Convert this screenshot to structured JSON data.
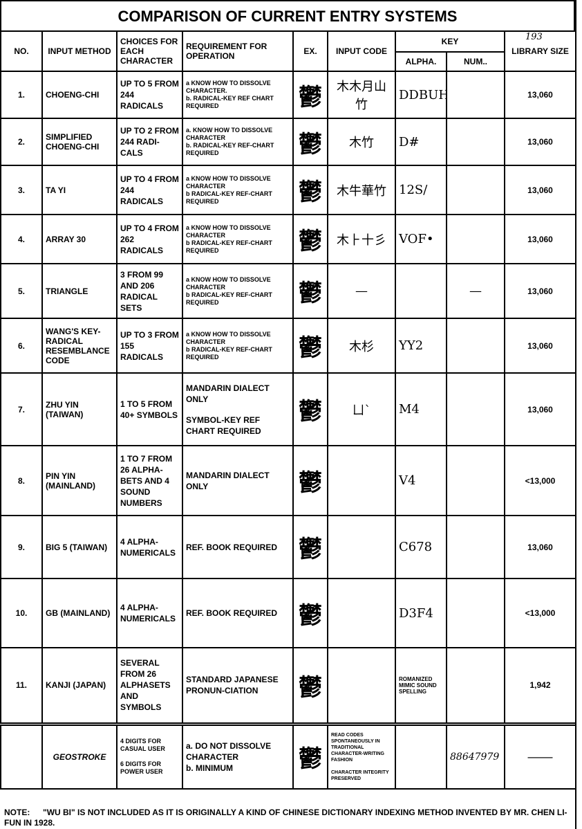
{
  "title": "COMPARISON OF CURRENT ENTRY SYSTEMS",
  "headers": {
    "no": "NO.",
    "method": "INPUT METHOD",
    "choices": "CHOICES FOR EACH CHARACTER",
    "requirement": "REQUIREMENT FOR OPERATION",
    "ex": "EX.",
    "input_code": "INPUT CODE",
    "key": "KEY",
    "alpha": "ALPHA.",
    "num": "NUM..",
    "library": "LIBRARY SIZE",
    "library_note": "193"
  },
  "example_char": "鬱",
  "rows": [
    {
      "no": "1.",
      "method": "CHOENG-CHI",
      "choices": "UP TO 5 FROM 244 RADICALS",
      "req": [
        "a  KNOW HOW TO DISSOLVE CHARACTER.",
        "b. RADICAL-KEY REF CHART REQUIRED"
      ],
      "code": "木木月山竹",
      "alpha": "DDBUH",
      "num": "",
      "lib": "13,060"
    },
    {
      "no": "2.",
      "method": "SIMPLIFIED CHOENG-CHI",
      "choices": "UP TO 2 FROM 244 RADI-CALS",
      "req": [
        "a. KNOW HOW TO DISSOLVE CHARACTER",
        "b. RADICAL-KEY REF-CHART REQUIRED"
      ],
      "code": "木竹",
      "alpha": "D#",
      "num": "",
      "lib": "13,060"
    },
    {
      "no": "3.",
      "method": "TA YI",
      "choices": "UP TO 4 FROM 244 RADICALS",
      "req": [
        "a KNOW HOW TO DISSOLVE CHARACTER",
        "b RADICAL-KEY REF-CHART REQUIRED"
      ],
      "code": "木牛華竹",
      "alpha": "12S/",
      "num": "",
      "lib": "13,060"
    },
    {
      "no": "4.",
      "method": "ARRAY 30",
      "choices": "UP TO 4 FROM 262 RADICALS",
      "req": [
        "a KNOW HOW TO DISSOLVE CHARACTER",
        "b RADICAL-KEY REF-CHART REQUIRED"
      ],
      "code": "木⺊十彡",
      "alpha": "VOF•",
      "num": "",
      "lib": "13,060"
    },
    {
      "no": "5.",
      "method": "TRIANGLE",
      "choices": "3 FROM 99 AND 206 RADICAL SETS",
      "req": [
        "a KNOW HOW TO DISSOLVE CHARACTER",
        "b RADICAL-KEY REF-CHART REQUIRED"
      ],
      "code": "—",
      "alpha": "",
      "num": "—",
      "lib": "13,060"
    },
    {
      "no": "6.",
      "method": "WANG'S KEY-RADICAL RESEMBLANCE CODE",
      "choices": "UP TO 3 FROM 155 RADICALS",
      "req": [
        "a KNOW HOW TO DISSOLVE CHARACTER",
        "b RADICAL-KEY REF-CHART REQUIRED"
      ],
      "code": "木杉",
      "alpha": "YY2",
      "num": "",
      "lib": "13,060"
    },
    {
      "no": "7.",
      "method": "ZHU YIN (TAIWAN)",
      "choices": "1 TO 5 FROM 40+ SYMBOLS",
      "req": [
        "MANDARIN DIALECT ONLY",
        "SYMBOL-KEY REF CHART REQUIRED"
      ],
      "code": "ㄩˋ",
      "alpha": "M4",
      "num": "",
      "lib": "13,060"
    },
    {
      "no": "8.",
      "method": "PIN YIN (MAINLAND)",
      "choices": "1 TO 7 FROM 26 ALPHA-BETS AND 4 SOUND NUMBERS",
      "req": [
        "MANDARIN DIALECT ONLY"
      ],
      "code": "",
      "alpha": "V4",
      "num": "",
      "lib": "<13,000"
    },
    {
      "no": "9.",
      "method": "BIG 5 (TAIWAN)",
      "choices": "4 ALPHA-NUMERICALS",
      "req": [
        "REF. BOOK REQUIRED"
      ],
      "code": "",
      "alpha": "C678",
      "num": "",
      "lib": "13,060"
    },
    {
      "no": "10.",
      "method": "GB (MAINLAND)",
      "choices": "4 ALPHA-NUMERICALS",
      "req": [
        "REF. BOOK REQUIRED"
      ],
      "code": "",
      "alpha": "D3F4",
      "num": "",
      "lib": "<13,000"
    },
    {
      "no": "11.",
      "method": "KANJI (JAPAN)",
      "choices": "SEVERAL FROM 26 ALPHASETS AND SYMBOLS",
      "req": [
        "STANDARD JAPANESE PRONUN-CIATION"
      ],
      "code": "",
      "alpha": "ROMANIZED MIMIC SOUND SPELLING",
      "num": "",
      "lib": "1,942"
    }
  ],
  "geostroke": {
    "method": "GEOSTROKE",
    "choices": [
      "4 DIGITS FOR CASUAL USER",
      "6 DIGITS FOR POWER USER"
    ],
    "req": [
      "a.  DO NOT DISSOLVE CHARACTER",
      "b.  MINIMUM"
    ],
    "code": [
      "READ CODES SPONTANEOUSLY IN TRADITIONAL CHARACTER-WRITING FASHION",
      "CHARACTER INTEGRITY PRESERVED"
    ],
    "alpha": "",
    "num": "88647979",
    "lib": "———"
  },
  "note": {
    "label": "NOTE:",
    "text": "\"WU BI\" IS NOT INCLUDED AS IT IS ORIGINALLY A KIND OF CHINESE DICTIONARY INDEXING METHOD INVENTED BY MR. CHEN LI-FUN IN 1928."
  }
}
